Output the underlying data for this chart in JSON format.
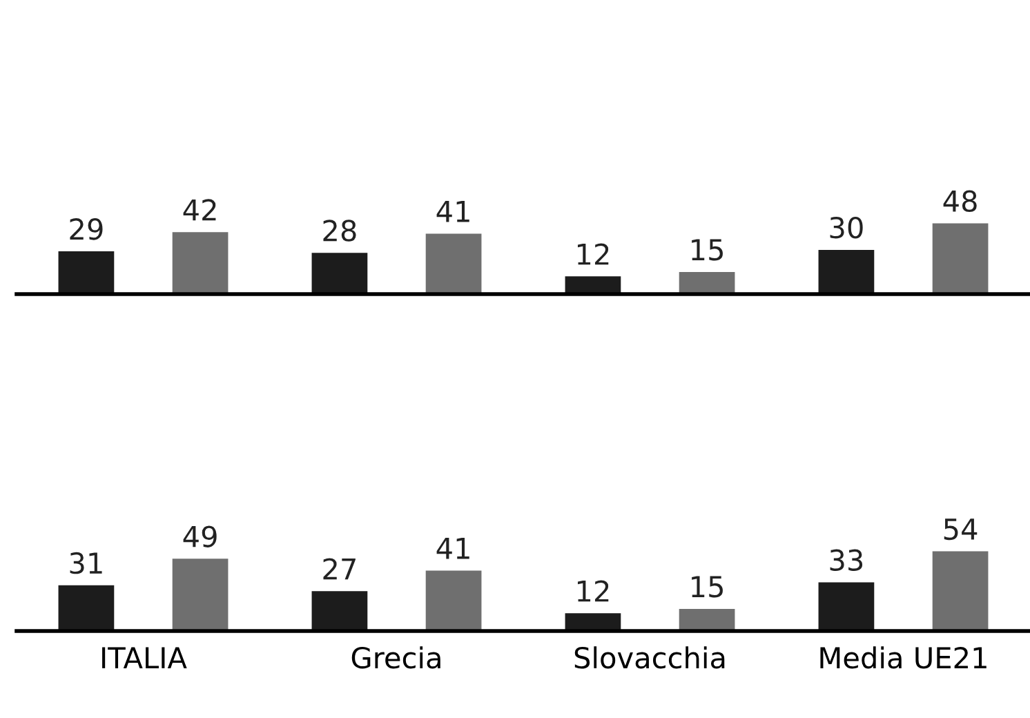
{
  "chart_data": [
    {
      "type": "bar",
      "categories": [
        null,
        null,
        null,
        null
      ],
      "series": [
        {
          "color": "#1c1c1c",
          "values": [
            29,
            28,
            12,
            30
          ]
        },
        {
          "color": "#6f6f6f",
          "values": [
            42,
            41,
            15,
            48
          ]
        }
      ],
      "data_labels": true
    },
    {
      "type": "bar",
      "categories": [
        "ITALIA",
        "Grecia",
        "Slovacchia",
        "Media UE21"
      ],
      "series": [
        {
          "color": "#1c1c1c",
          "values": [
            31,
            27,
            12,
            33
          ]
        },
        {
          "color": "#6f6f6f",
          "values": [
            49,
            41,
            15,
            54
          ]
        }
      ],
      "data_labels": true
    }
  ]
}
